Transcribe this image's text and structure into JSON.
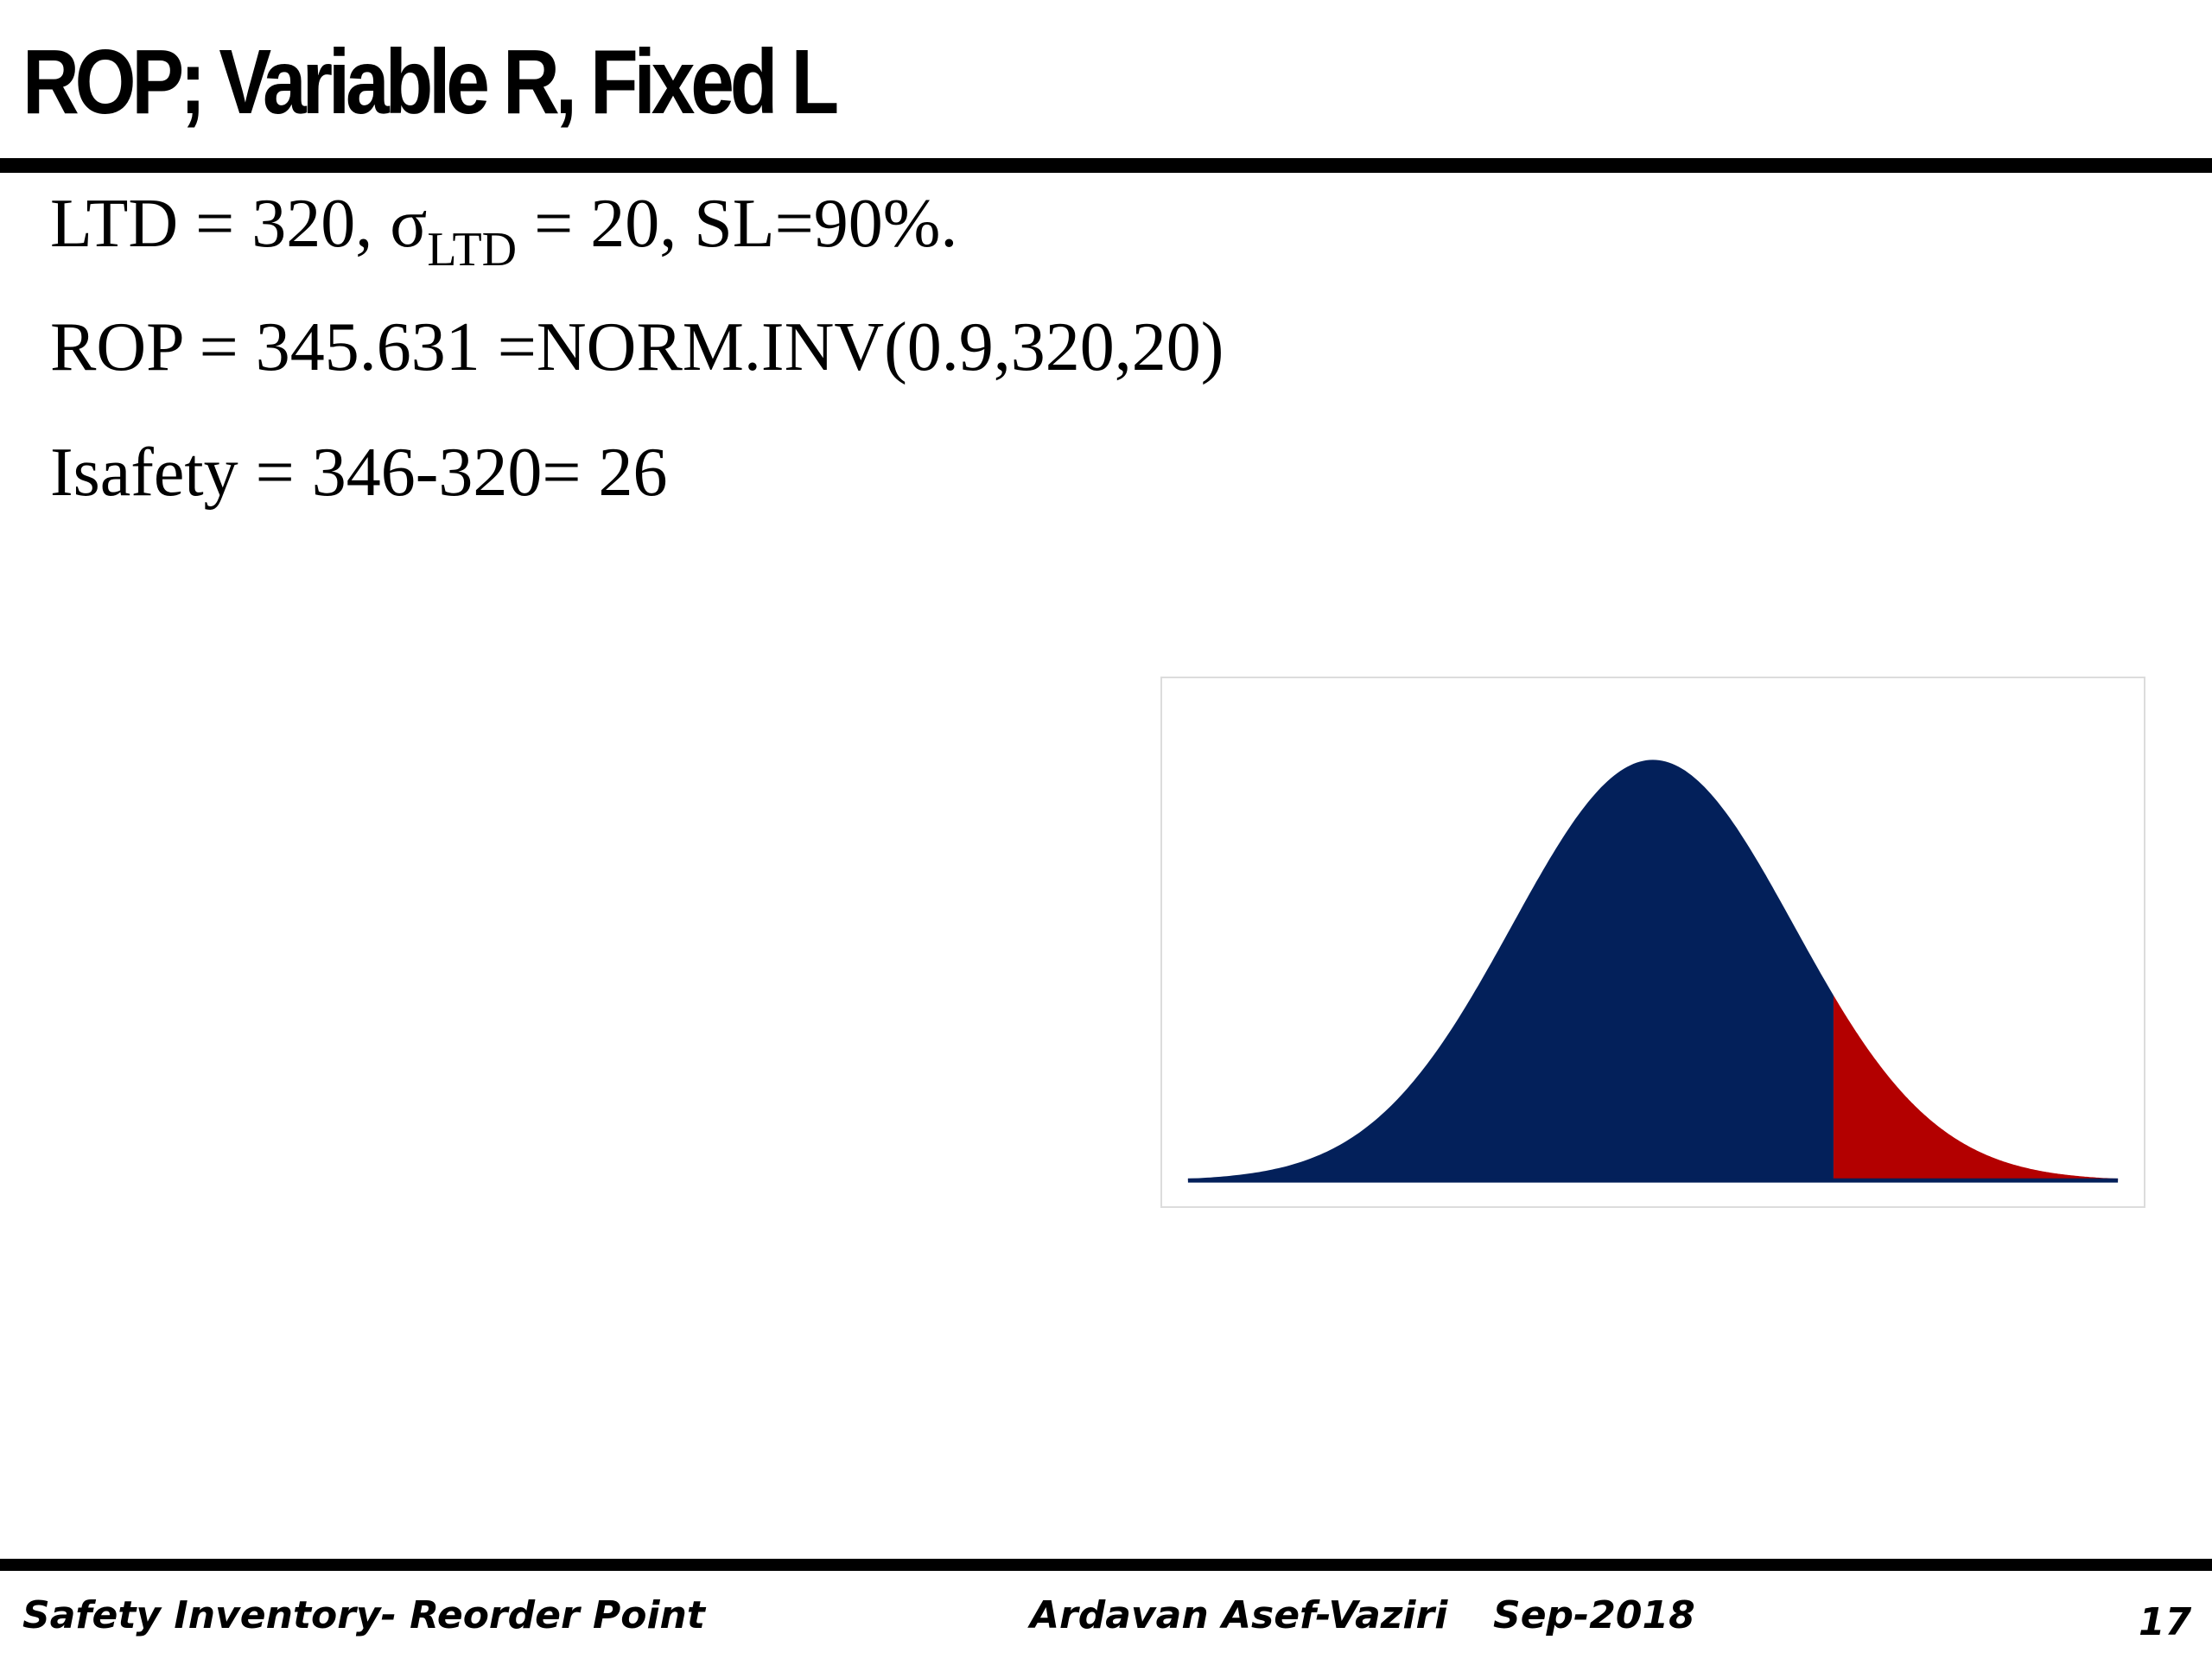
{
  "slide": {
    "title": "ROP; Variable  R, Fixed L",
    "line1": {
      "part1": "LTD = 320,  σ",
      "subscript": "LTD",
      "part2": " = 20, SL=90%."
    },
    "line2": "ROP = 345.631 =NORM.INV(0.9,320,20)",
    "line3": "Isafety = 346-320= 26"
  },
  "chart": {
    "mean": 320,
    "sd": 20,
    "cutoff": 345.631,
    "body_color": "#03205a",
    "tail_color": "#b30000"
  },
  "footer": {
    "left": "Safety Inventory- Reorder Point",
    "author": "Ardavan Asef-Vaziri",
    "date": "Sep-2018",
    "page": "17"
  }
}
